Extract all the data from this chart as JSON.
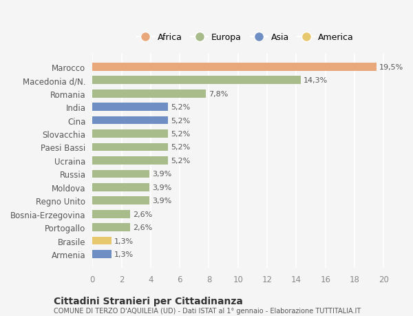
{
  "categories": [
    "Armenia",
    "Brasile",
    "Portogallo",
    "Bosnia-Erzegovina",
    "Regno Unito",
    "Moldova",
    "Russia",
    "Ucraina",
    "Paesi Bassi",
    "Slovacchia",
    "Cina",
    "India",
    "Romania",
    "Macedonia d/N.",
    "Marocco"
  ],
  "values": [
    1.3,
    1.3,
    2.6,
    2.6,
    3.9,
    3.9,
    3.9,
    5.2,
    5.2,
    5.2,
    5.2,
    5.2,
    7.8,
    14.3,
    19.5
  ],
  "colors": [
    "#6e8ec4",
    "#e8c86e",
    "#a8bb8a",
    "#a8bb8a",
    "#a8bb8a",
    "#a8bb8a",
    "#a8bb8a",
    "#a8bb8a",
    "#a8bb8a",
    "#a8bb8a",
    "#6e8ec4",
    "#6e8ec4",
    "#a8bb8a",
    "#a8bb8a",
    "#e8a87c"
  ],
  "legend": [
    {
      "label": "Africa",
      "color": "#e8a87c"
    },
    {
      "label": "Europa",
      "color": "#a8bb8a"
    },
    {
      "label": "Asia",
      "color": "#6e8ec4"
    },
    {
      "label": "America",
      "color": "#e8c86e"
    }
  ],
  "xlim": [
    0,
    21
  ],
  "xticks": [
    0,
    2,
    4,
    6,
    8,
    10,
    12,
    14,
    16,
    18,
    20
  ],
  "title": "Cittadini Stranieri per Cittadinanza",
  "subtitle": "COMUNE DI TERZO D'AQUILEIA (UD) - Dati ISTAT al 1° gennaio - Elaborazione TUTTITALIA.IT",
  "bg_color": "#f5f5f5",
  "bar_height": 0.6,
  "value_labels": [
    "1,3%",
    "1,3%",
    "2,6%",
    "2,6%",
    "3,9%",
    "3,9%",
    "3,9%",
    "5,2%",
    "5,2%",
    "5,2%",
    "5,2%",
    "5,2%",
    "7,8%",
    "14,3%",
    "19,5%"
  ]
}
